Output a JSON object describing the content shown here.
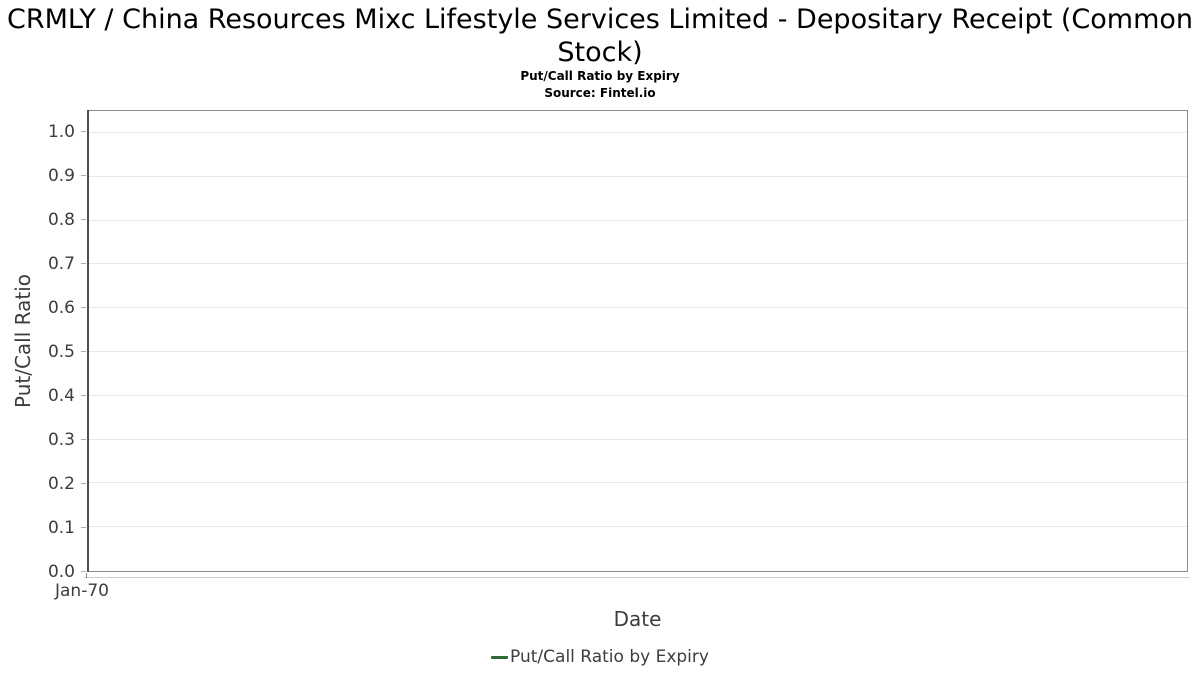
{
  "chart_data": {
    "type": "line",
    "title": "CRMLY / China Resources Mixc Lifestyle Services Limited - Depositary Receipt (Common Stock)",
    "subtitle": "Put/Call Ratio by Expiry",
    "source": "Source: Fintel.io",
    "xlabel": "Date",
    "ylabel": "Put/Call Ratio",
    "x_tick_labels": [
      "Jan-70"
    ],
    "y_tick_labels": [
      "0.0",
      "0.1",
      "0.2",
      "0.3",
      "0.4",
      "0.5",
      "0.6",
      "0.7",
      "0.8",
      "0.9",
      "1.0"
    ],
    "ylim": [
      0,
      1.05
    ],
    "grid": "horizontal",
    "legend_position": "bottom",
    "series": [
      {
        "name": "Put/Call Ratio by Expiry",
        "color": "#2d6a33",
        "x": [],
        "values": []
      }
    ]
  },
  "colors": {
    "title_text": "#000000",
    "axis_text": "#3d3d3d",
    "gridline": "#e6e6e6",
    "plot_border": "#8c8c8c",
    "left_spine": "#4f4f4f",
    "x_axis_line": "#cccccc",
    "legend_green": "#2d6a33"
  }
}
